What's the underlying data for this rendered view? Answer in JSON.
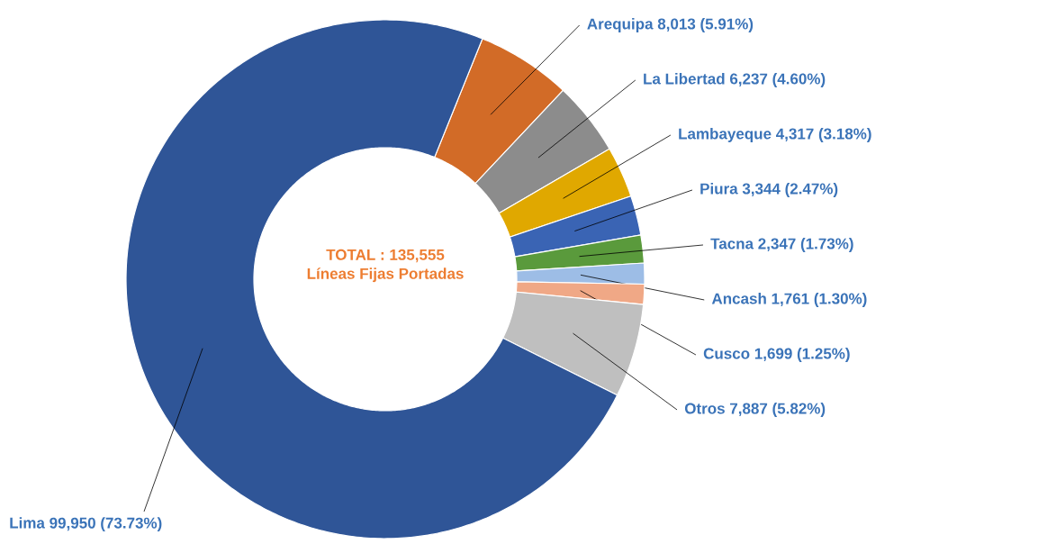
{
  "chart_data": {
    "type": "donut",
    "categories": [
      "Arequipa",
      "La Libertad",
      "Lambayeque",
      "Piura",
      "Tacna",
      "Ancash",
      "Cusco",
      "Otros",
      "Lima"
    ],
    "values": [
      8013,
      6237,
      4317,
      3344,
      2347,
      1761,
      1699,
      7887,
      99950
    ],
    "value_labels": [
      "8,013 (5.91%)",
      "6,237 (4.60%)",
      "4,317 (3.18%)",
      "3,344 (2.47%)",
      "2,347 (1.73%)",
      "1,761 (1.30%)",
      "1,699 (1.25%)",
      "7,887 (5.82%)",
      "99,950 (73.73%)"
    ],
    "colors": [
      "#d26b27",
      "#8c8c8c",
      "#e0a800",
      "#3a64b4",
      "#5a9a3c",
      "#9dbde6",
      "#f0a886",
      "#bfbfbf",
      "#2f5597"
    ],
    "annotations": [
      "TOTAL : 135,555",
      "Líneas Fijas Portadas"
    ]
  }
}
